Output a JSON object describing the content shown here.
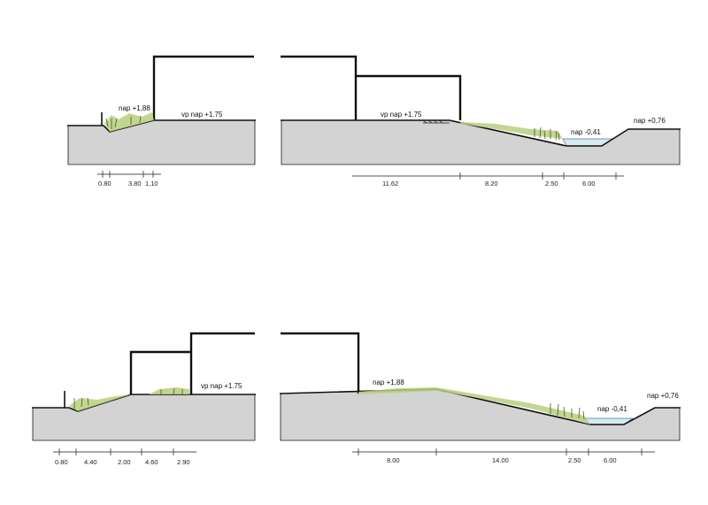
{
  "sections": [
    {
      "id": "top-left",
      "levels": [
        {
          "text": "nap +1,88"
        },
        {
          "text": "vp nap +1.75"
        }
      ],
      "dimensions": [
        "0.80",
        "3.80",
        "1,10"
      ]
    },
    {
      "id": "top-right",
      "levels": [
        {
          "text": "vp nap +1.75"
        },
        {
          "text": "nap -0,41"
        },
        {
          "text": "nap +0,76"
        }
      ],
      "dimensions": [
        "11.62",
        "8.20",
        "2.50",
        "6.00"
      ]
    },
    {
      "id": "bottom-left",
      "levels": [
        {
          "text": "vp nap +1.75"
        }
      ],
      "dimensions": [
        "0.80",
        "4.40",
        "2.00",
        "4.60",
        "2.90"
      ]
    },
    {
      "id": "bottom-right",
      "levels": [
        {
          "text": "nap +1,88"
        },
        {
          "text": "nap -0,41"
        },
        {
          "text": "nap +0,76"
        }
      ],
      "dimensions": [
        "8.00",
        "14.00",
        "2.50",
        "6.00"
      ]
    }
  ],
  "colors": {
    "ground": "#d3d3d3",
    "line": "#111111",
    "water": "#d6eaf2",
    "vegetation": "#b9cf7c"
  }
}
